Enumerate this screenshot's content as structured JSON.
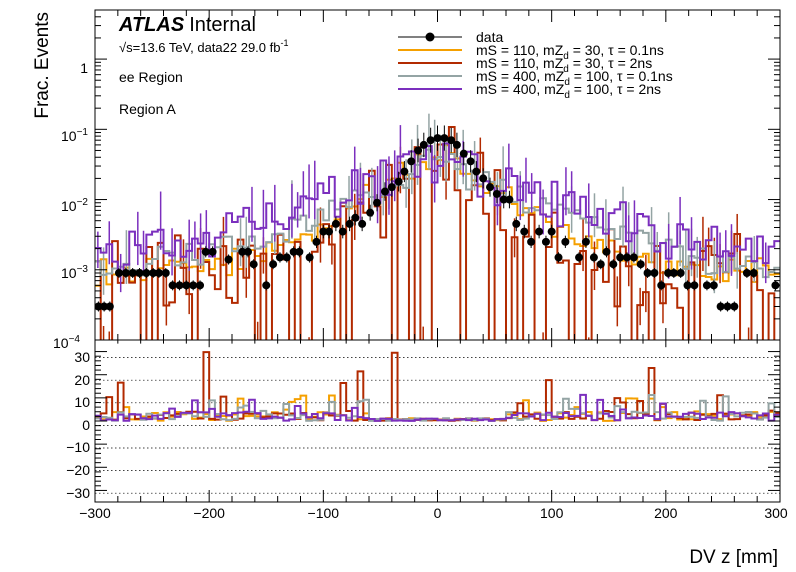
{
  "header": {
    "atlas": "ATLAS",
    "status": "Internal",
    "energy_sqrt": "√s",
    "energy_rest": "=13.6 TeV, data22 29.0 fb",
    "lumi_exp": "-1",
    "region_label": "ee Region",
    "subregion_label": "Region A"
  },
  "legend": [
    {
      "id": "data",
      "label": "data",
      "color": "#000000",
      "style": "marker"
    },
    {
      "id": "s1",
      "pre": "mS = 110, mZ",
      "sub": "d",
      "post": " = 30, τ = 0.1ns",
      "color": "#f5a000",
      "style": "line"
    },
    {
      "id": "s2",
      "pre": "mS = 110, mZ",
      "sub": "d",
      "post": " = 30, τ = 2ns",
      "color": "#b22a00",
      "style": "line"
    },
    {
      "id": "s3",
      "pre": "mS = 400, mZ",
      "sub": "d",
      "post": " = 100, τ = 0.1ns",
      "color": "#94a4a4",
      "style": "line"
    },
    {
      "id": "s4",
      "pre": "mS = 400, mZ",
      "sub": "d",
      "post": " = 100, τ = 2ns",
      "color": "#7b2fbe",
      "style": "line"
    }
  ],
  "chart_data": {
    "type": "histogram",
    "xlabel": "DV z [mm]",
    "ylabel": "Frac. Events",
    "x_range": [
      -300,
      300
    ],
    "y_scale": "log",
    "y_range": [
      0.0001,
      5
    ],
    "x_ticks": [
      "−300",
      "−200",
      "−100",
      "0",
      "100",
      "200",
      "300"
    ],
    "y_ticks": [
      {
        "base": "10",
        "exp": "−4",
        "value": 0.0001
      },
      {
        "base": "10",
        "exp": "−3",
        "value": 0.001
      },
      {
        "base": "10",
        "exp": "−2",
        "value": 0.01
      },
      {
        "base": "10",
        "exp": "−1",
        "value": 0.1
      },
      {
        "base": "1",
        "exp": "",
        "value": 1
      }
    ],
    "ratio_panel": {
      "y_range": [
        -35,
        35
      ],
      "y_ticks": [
        "30",
        "20",
        "10",
        "0",
        "−10",
        "−20",
        "−30"
      ],
      "grid": "dotted"
    },
    "data_points": [
      [
        -297,
        0.0003
      ],
      [
        -292,
        0.0003
      ],
      [
        -287,
        0.0003
      ],
      [
        -279,
        0.0009
      ],
      [
        -273,
        0.0009
      ],
      [
        -267,
        0.0009
      ],
      [
        -261,
        0.0009
      ],
      [
        -255,
        0.0009
      ],
      [
        -249,
        0.0009
      ],
      [
        -244,
        0.0009
      ],
      [
        -238,
        0.0009
      ],
      [
        -232,
        0.0006
      ],
      [
        -226,
        0.0006
      ],
      [
        -220,
        0.0006
      ],
      [
        -214,
        0.0006
      ],
      [
        -208,
        0.0006
      ],
      [
        -203,
        0.0018
      ],
      [
        -197,
        0.0018
      ],
      [
        -183,
        0.0014
      ],
      [
        -171,
        0.0018
      ],
      [
        -166,
        0.0018
      ],
      [
        -161,
        0.0012
      ],
      [
        -150,
        0.0006
      ],
      [
        -144,
        0.0012
      ],
      [
        -138,
        0.0015
      ],
      [
        -132,
        0.0015
      ],
      [
        -126,
        0.0018
      ],
      [
        -121,
        0.0018
      ],
      [
        -112,
        0.0015
      ],
      [
        -106,
        0.0025
      ],
      [
        -100,
        0.0035
      ],
      [
        -95,
        0.0035
      ],
      [
        -89,
        0.0045
      ],
      [
        -83,
        0.0035
      ],
      [
        -77,
        0.0045
      ],
      [
        -72,
        0.0055
      ],
      [
        -66,
        0.0045
      ],
      [
        -59,
        0.0065
      ],
      [
        -53,
        0.009
      ],
      [
        -46,
        0.013
      ],
      [
        -40,
        0.015
      ],
      [
        -34,
        0.018
      ],
      [
        -29,
        0.025
      ],
      [
        -23,
        0.035
      ],
      [
        -17,
        0.05
      ],
      [
        -12,
        0.06
      ],
      [
        -6,
        0.07
      ],
      [
        0,
        0.075
      ],
      [
        6,
        0.075
      ],
      [
        12,
        0.07
      ],
      [
        17,
        0.06
      ],
      [
        23,
        0.045
      ],
      [
        29,
        0.035
      ],
      [
        34,
        0.025
      ],
      [
        40,
        0.02
      ],
      [
        46,
        0.015
      ],
      [
        52,
        0.012
      ],
      [
        58,
        0.01
      ],
      [
        63,
        0.01
      ],
      [
        69,
        0.0045
      ],
      [
        76,
        0.0035
      ],
      [
        82,
        0.0025
      ],
      [
        89,
        0.0035
      ],
      [
        95,
        0.0025
      ],
      [
        100,
        0.0035
      ],
      [
        106,
        0.0015
      ],
      [
        112,
        0.0025
      ],
      [
        124,
        0.0015
      ],
      [
        130,
        0.0025
      ],
      [
        137,
        0.0015
      ],
      [
        143,
        0.0012
      ],
      [
        148,
        0.0018
      ],
      [
        154,
        0.0012
      ],
      [
        160,
        0.0015
      ],
      [
        166,
        0.0015
      ],
      [
        172,
        0.0015
      ],
      [
        178,
        0.0012
      ],
      [
        184,
        0.0009
      ],
      [
        190,
        0.0009
      ],
      [
        196,
        0.0006
      ],
      [
        202,
        0.0009
      ],
      [
        207,
        0.0009
      ],
      [
        213,
        0.0009
      ],
      [
        219,
        0.0006
      ],
      [
        225,
        0.0006
      ],
      [
        236,
        0.0006
      ],
      [
        242,
        0.0006
      ],
      [
        248,
        0.0003
      ],
      [
        254,
        0.0003
      ],
      [
        260,
        0.0003
      ],
      [
        271,
        0.0009
      ],
      [
        277,
        0.0009
      ],
      [
        296,
        0.0006
      ]
    ]
  }
}
